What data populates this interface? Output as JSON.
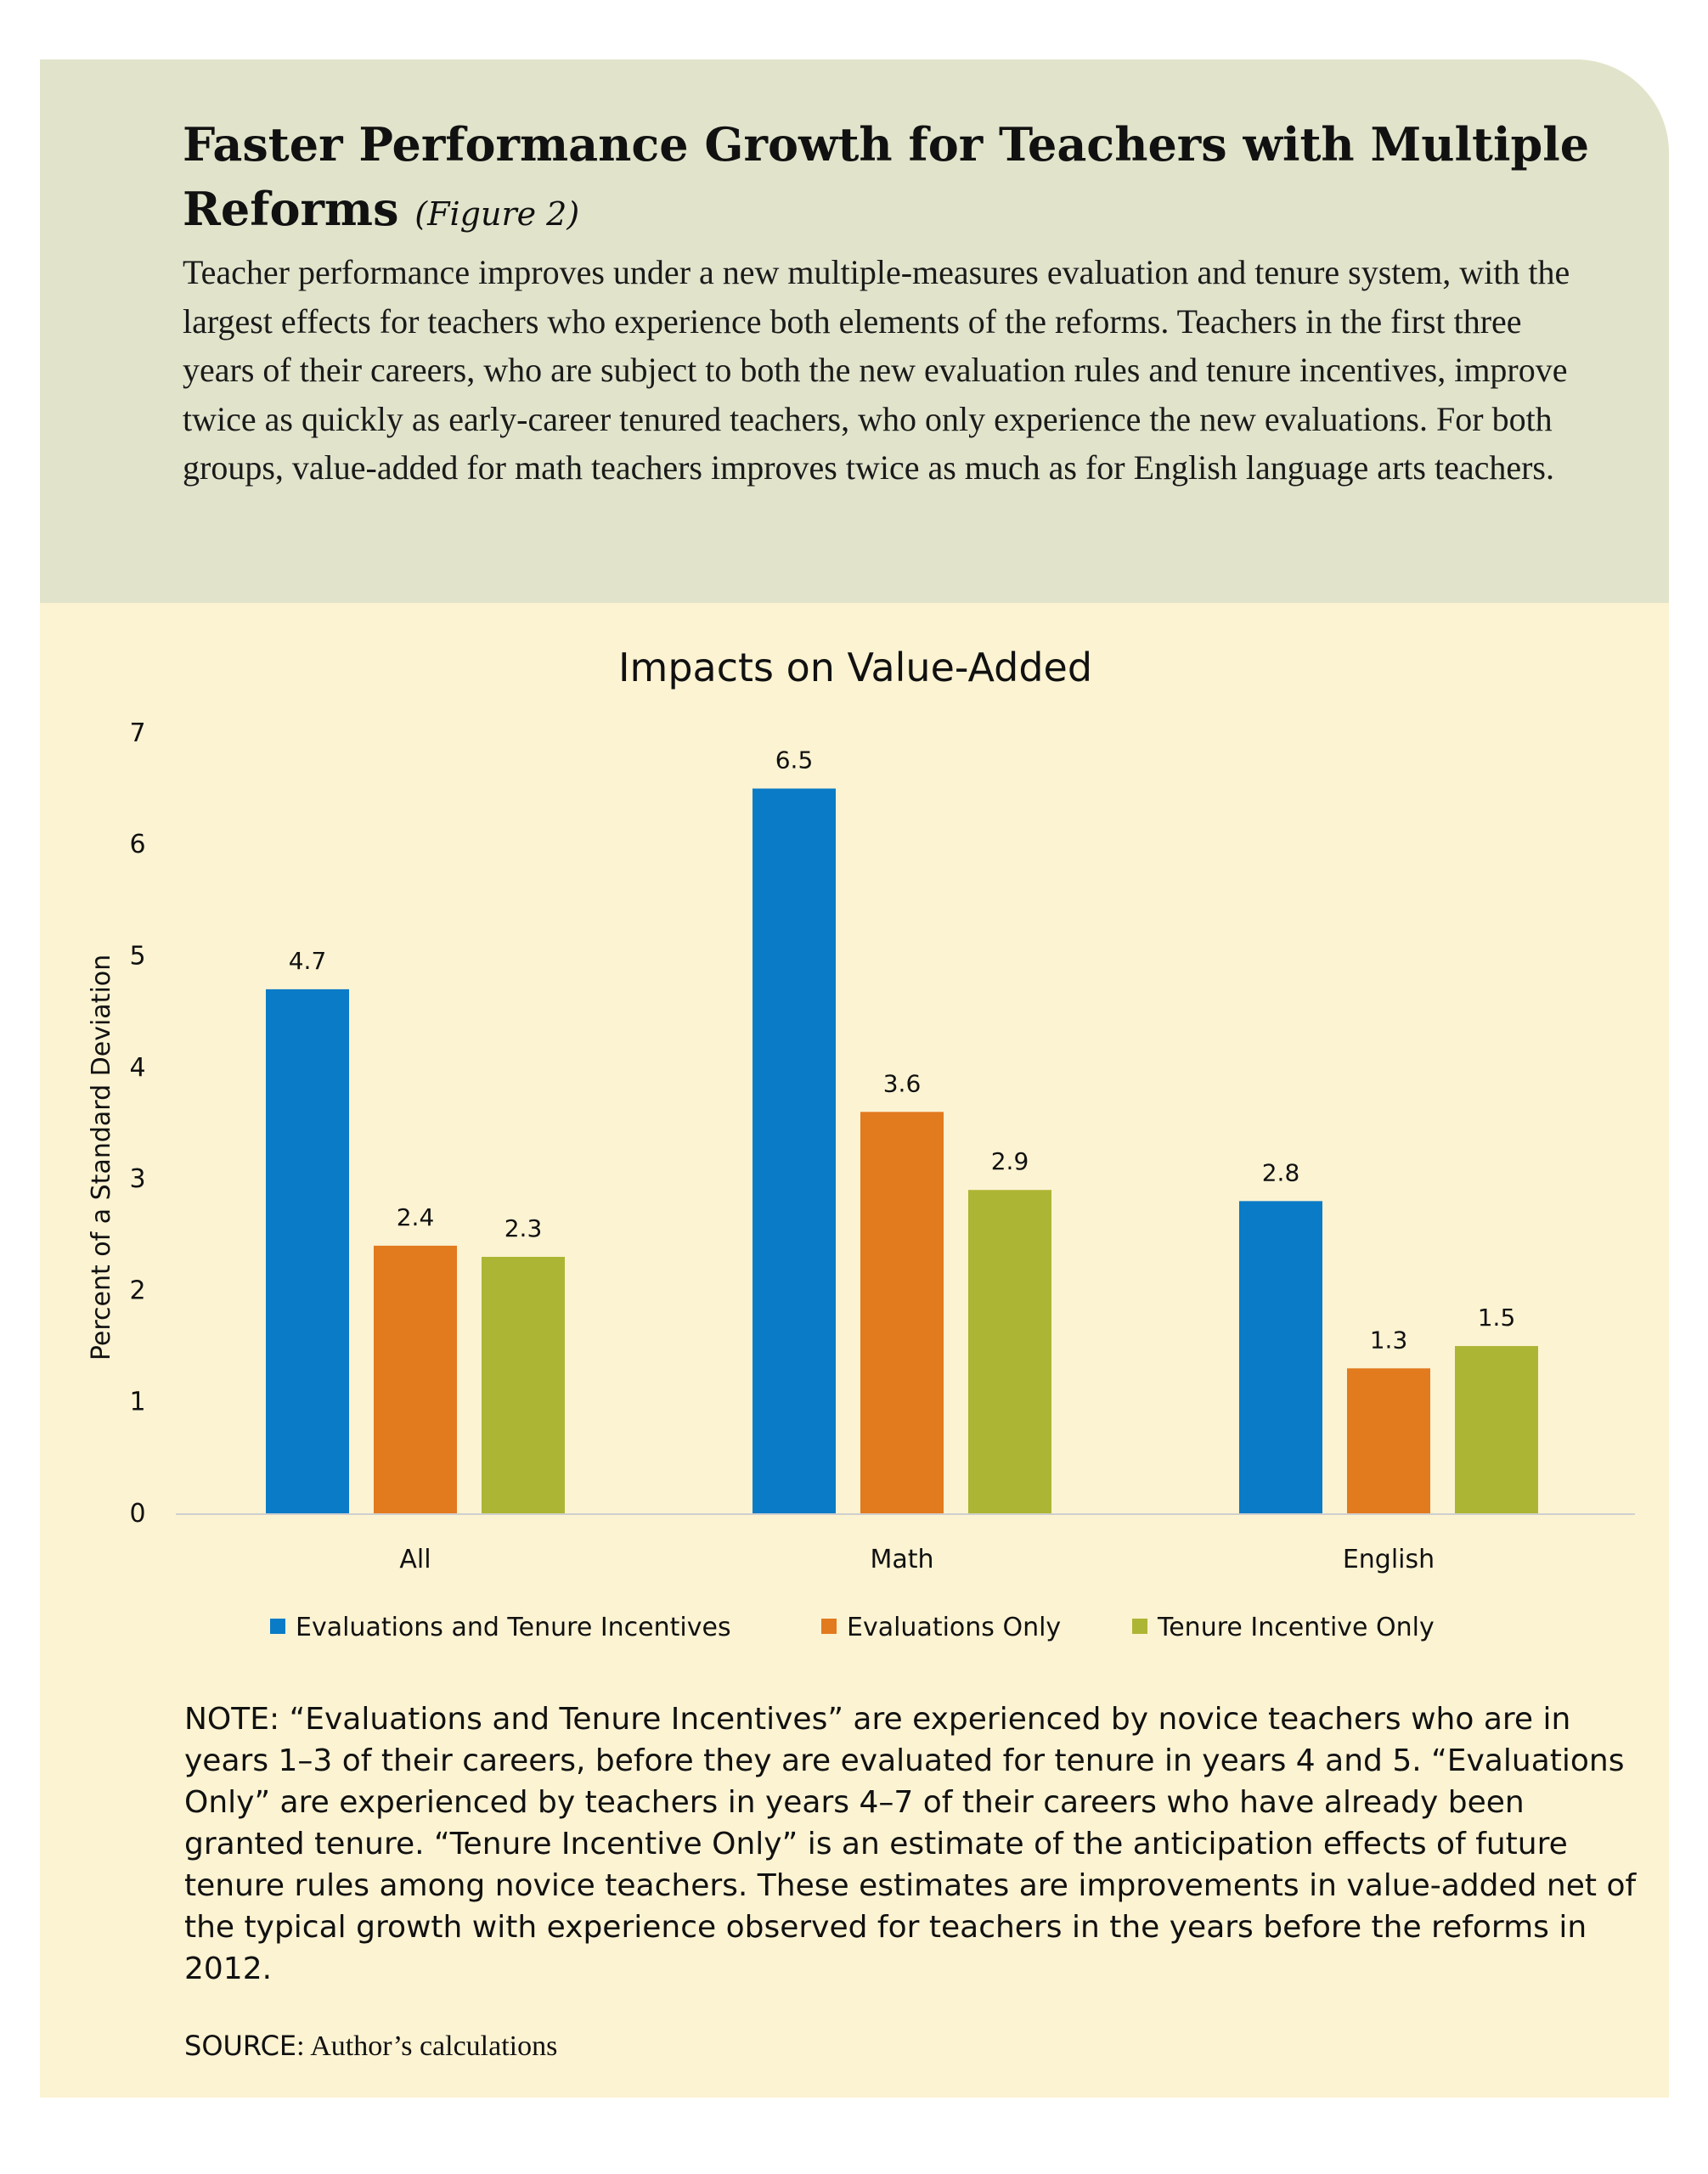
{
  "header": {
    "title": "Faster Performance Growth for Teachers with Multiple Reforms",
    "figure_ref": "(Figure 2)",
    "intro": "Teacher performance improves under a new multiple-measures evaluation and tenure system, with the largest effects for teachers who experience both elements of the reforms. Teachers in the first three years of their careers, who are subject to both the new evaluation rules and tenure incentives, improve twice as quickly as early-career tenured teachers, who only experience the new evaluations. For both groups, value-added for math teachers improves twice as much as for English language arts teachers."
  },
  "chart_data": {
    "type": "bar",
    "title": "Impacts on Value-Added",
    "xlabel": "",
    "ylabel": "Percent of a Standard Deviation",
    "ylim": [
      0,
      7
    ],
    "yticks": [
      "0",
      "1",
      "2",
      "3",
      "4",
      "5",
      "6",
      "7"
    ],
    "categories": [
      "All",
      "Math",
      "English"
    ],
    "series": [
      {
        "name": "Evaluations and Tenure Incentives",
        "color": "#0a7bc6",
        "values": [
          4.7,
          6.5,
          2.8
        ],
        "labels": [
          "4.7",
          "6.5",
          "2.8"
        ]
      },
      {
        "name": "Evaluations Only",
        "color": "#e27a1e",
        "values": [
          2.4,
          3.6,
          1.3
        ],
        "labels": [
          "2.4",
          "3.6",
          "1.3"
        ]
      },
      {
        "name": "Tenure Incentive Only",
        "color": "#adb534",
        "values": [
          2.3,
          2.9,
          1.5
        ],
        "labels": [
          "2.3",
          "2.9",
          "1.5"
        ]
      }
    ],
    "legend_position": "bottom",
    "grid": false
  },
  "footer": {
    "note": "NOTE: “Evaluations and Tenure Incentives” are experienced by novice teachers who are in years 1–3 of their careers, before they are evaluated for tenure in years 4 and 5. “Evaluations Only” are experienced by teachers in years 4–7 of their careers who have already been granted tenure. “Tenure Incentive Only” is an estimate of the anticipation effects of future tenure rules among novice teachers. These estimates are improvements in value-added net of the typical growth with experience observed for teachers in the years before the reforms in 2012.",
    "source_key": "SOURCE",
    "source_text": ": Author’s calculations"
  }
}
